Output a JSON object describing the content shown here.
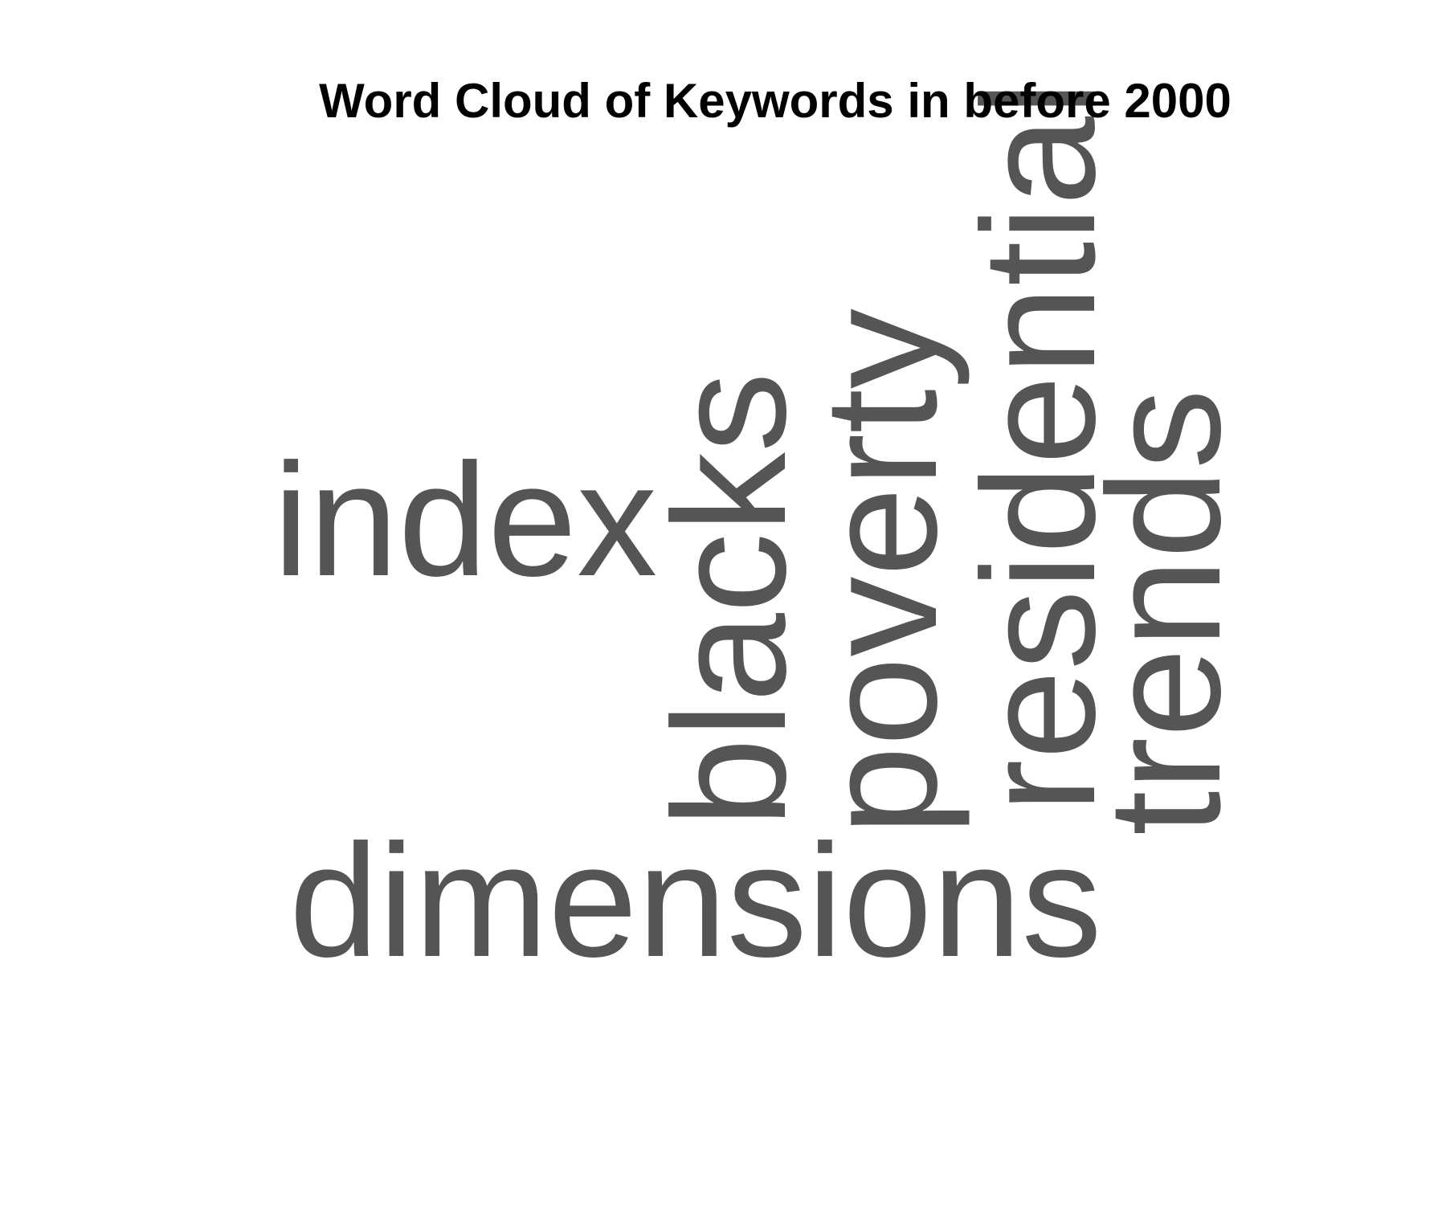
{
  "chart_data": {
    "type": "wordcloud",
    "title": "Word Cloud of Keywords in before 2000",
    "color": "#555555",
    "words": [
      {
        "text": "dimensions",
        "orientation": "horizontal"
      },
      {
        "text": "index",
        "orientation": "horizontal"
      },
      {
        "text": "blacks",
        "orientation": "vertical"
      },
      {
        "text": "poverty",
        "orientation": "vertical"
      },
      {
        "text": "residential",
        "orientation": "vertical"
      },
      {
        "text": "trends",
        "orientation": "vertical"
      }
    ]
  }
}
